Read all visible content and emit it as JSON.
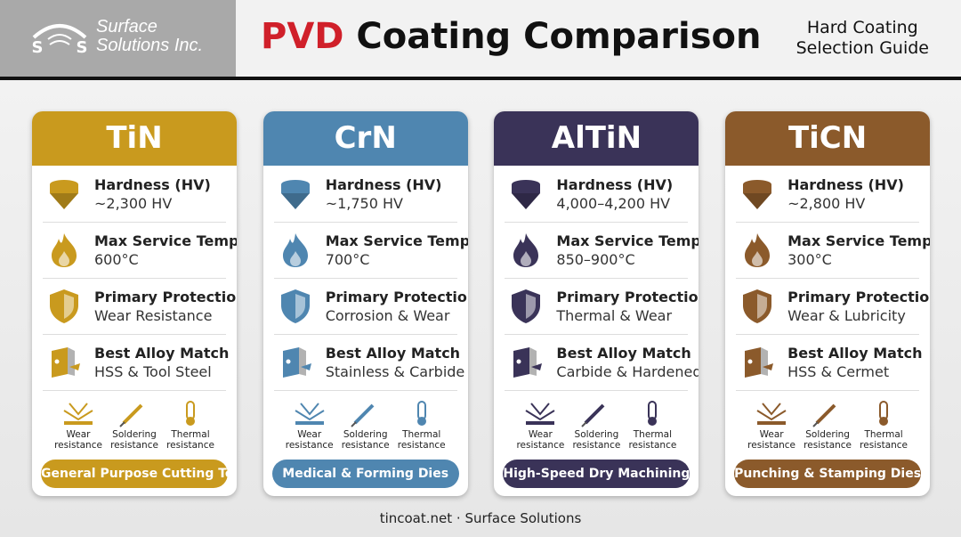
{
  "header": {
    "logo_letters": [
      "S",
      "S"
    ],
    "logo_line1": "Surface",
    "logo_line2": "Solutions Inc.",
    "title_highlight": "PVD",
    "title_rest": "Coating Comparison",
    "subtitle_line1": "Hard Coating",
    "subtitle_line2": "Selection Guide"
  },
  "cards": [
    {
      "name": "TiN",
      "color": "#c99a1e",
      "rows": [
        {
          "label": "Hardness (HV)",
          "value": "~2,300 HV"
        },
        {
          "label": "Max Service Temp.",
          "value": "600°C"
        },
        {
          "label": "Primary Protection",
          "value": "Wear Resistance"
        },
        {
          "label": "Best Alloy Match",
          "value": "HSS & Tool Steel"
        }
      ],
      "features": [
        [
          "Wear",
          "resistance"
        ],
        [
          "Soldering",
          "resistance"
        ],
        [
          "Thermal",
          "resistance"
        ]
      ],
      "tag": "General Purpose Cutting Tools"
    },
    {
      "name": "CrN",
      "color": "#4f86b0",
      "rows": [
        {
          "label": "Hardness (HV)",
          "value": "~1,750 HV"
        },
        {
          "label": "Max Service Temp.",
          "value": "700°C"
        },
        {
          "label": "Primary Protection",
          "value": "Corrosion & Wear"
        },
        {
          "label": "Best Alloy Match",
          "value": "Stainless & Carbide"
        }
      ],
      "features": [
        [
          "Wear",
          "resistance"
        ],
        [
          "Soldering",
          "resistance"
        ],
        [
          "Thermal",
          "resistance"
        ]
      ],
      "tag": "Medical & Forming Dies"
    },
    {
      "name": "AlTiN",
      "color": "#3a3358",
      "rows": [
        {
          "label": "Hardness (HV)",
          "value": "4,000–4,200 HV"
        },
        {
          "label": "Max Service Temp.",
          "value": "850–900°C"
        },
        {
          "label": "Primary Protection",
          "value": "Thermal & Wear"
        },
        {
          "label": "Best Alloy Match",
          "value": "Carbide & Hardened"
        }
      ],
      "features": [
        [
          "Wear",
          "resistance"
        ],
        [
          "Soldering",
          "resistance"
        ],
        [
          "Thermal",
          "resistance"
        ]
      ],
      "tag": "High-Speed Dry Machining"
    },
    {
      "name": "TiCN",
      "color": "#8b5a2b",
      "rows": [
        {
          "label": "Hardness (HV)",
          "value": "~2,800 HV"
        },
        {
          "label": "Max Service Temp.",
          "value": "300°C"
        },
        {
          "label": "Primary Protection",
          "value": "Wear & Lubricity"
        },
        {
          "label": "Best Alloy Match",
          "value": "HSS & Cermet"
        }
      ],
      "features": [
        [
          "Wear",
          "resistance"
        ],
        [
          "Soldering",
          "resistance"
        ],
        [
          "Thermal",
          "resistance"
        ]
      ],
      "tag": "Punching & Stamping Dies"
    }
  ],
  "footer": "tincoat.net · Surface Solutions"
}
